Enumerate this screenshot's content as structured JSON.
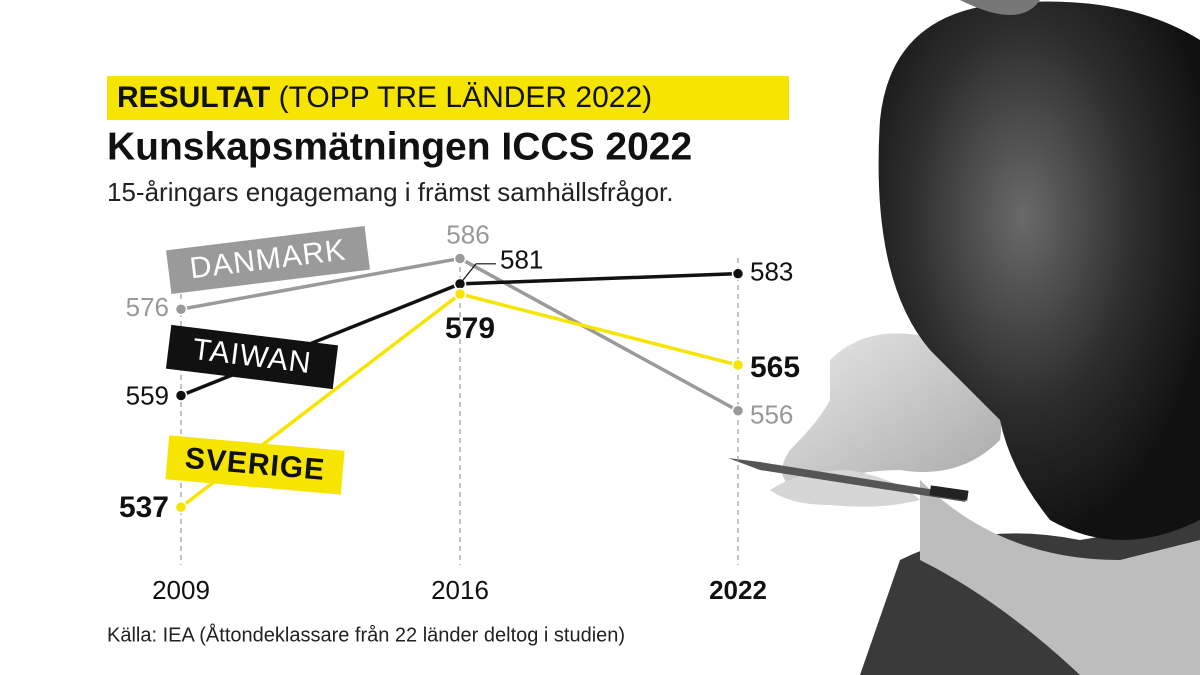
{
  "chart_data": {
    "type": "line",
    "kicker": "RESULTAT",
    "kicker_note": "(TOPP TRE LÄNDER 2022)",
    "title": "Kunskapsmätningen ICCS 2022",
    "subtitle": "15-åringars engagemang i främst samhällsfrågor.",
    "source": "Källa: IEA (Åttondeklassare från 22 länder deltog i studien)",
    "categories": [
      "2009",
      "2016",
      "2022"
    ],
    "series": [
      {
        "name": "DANMARK",
        "color": "#9a9a9a",
        "values": [
          576,
          586,
          556
        ]
      },
      {
        "name": "TAIWAN",
        "color": "#111111",
        "values": [
          559,
          581,
          583
        ]
      },
      {
        "name": "SVERIGE",
        "color": "#f6e500",
        "values": [
          537,
          579,
          565
        ]
      }
    ],
    "ylim": [
      526,
      592
    ]
  }
}
